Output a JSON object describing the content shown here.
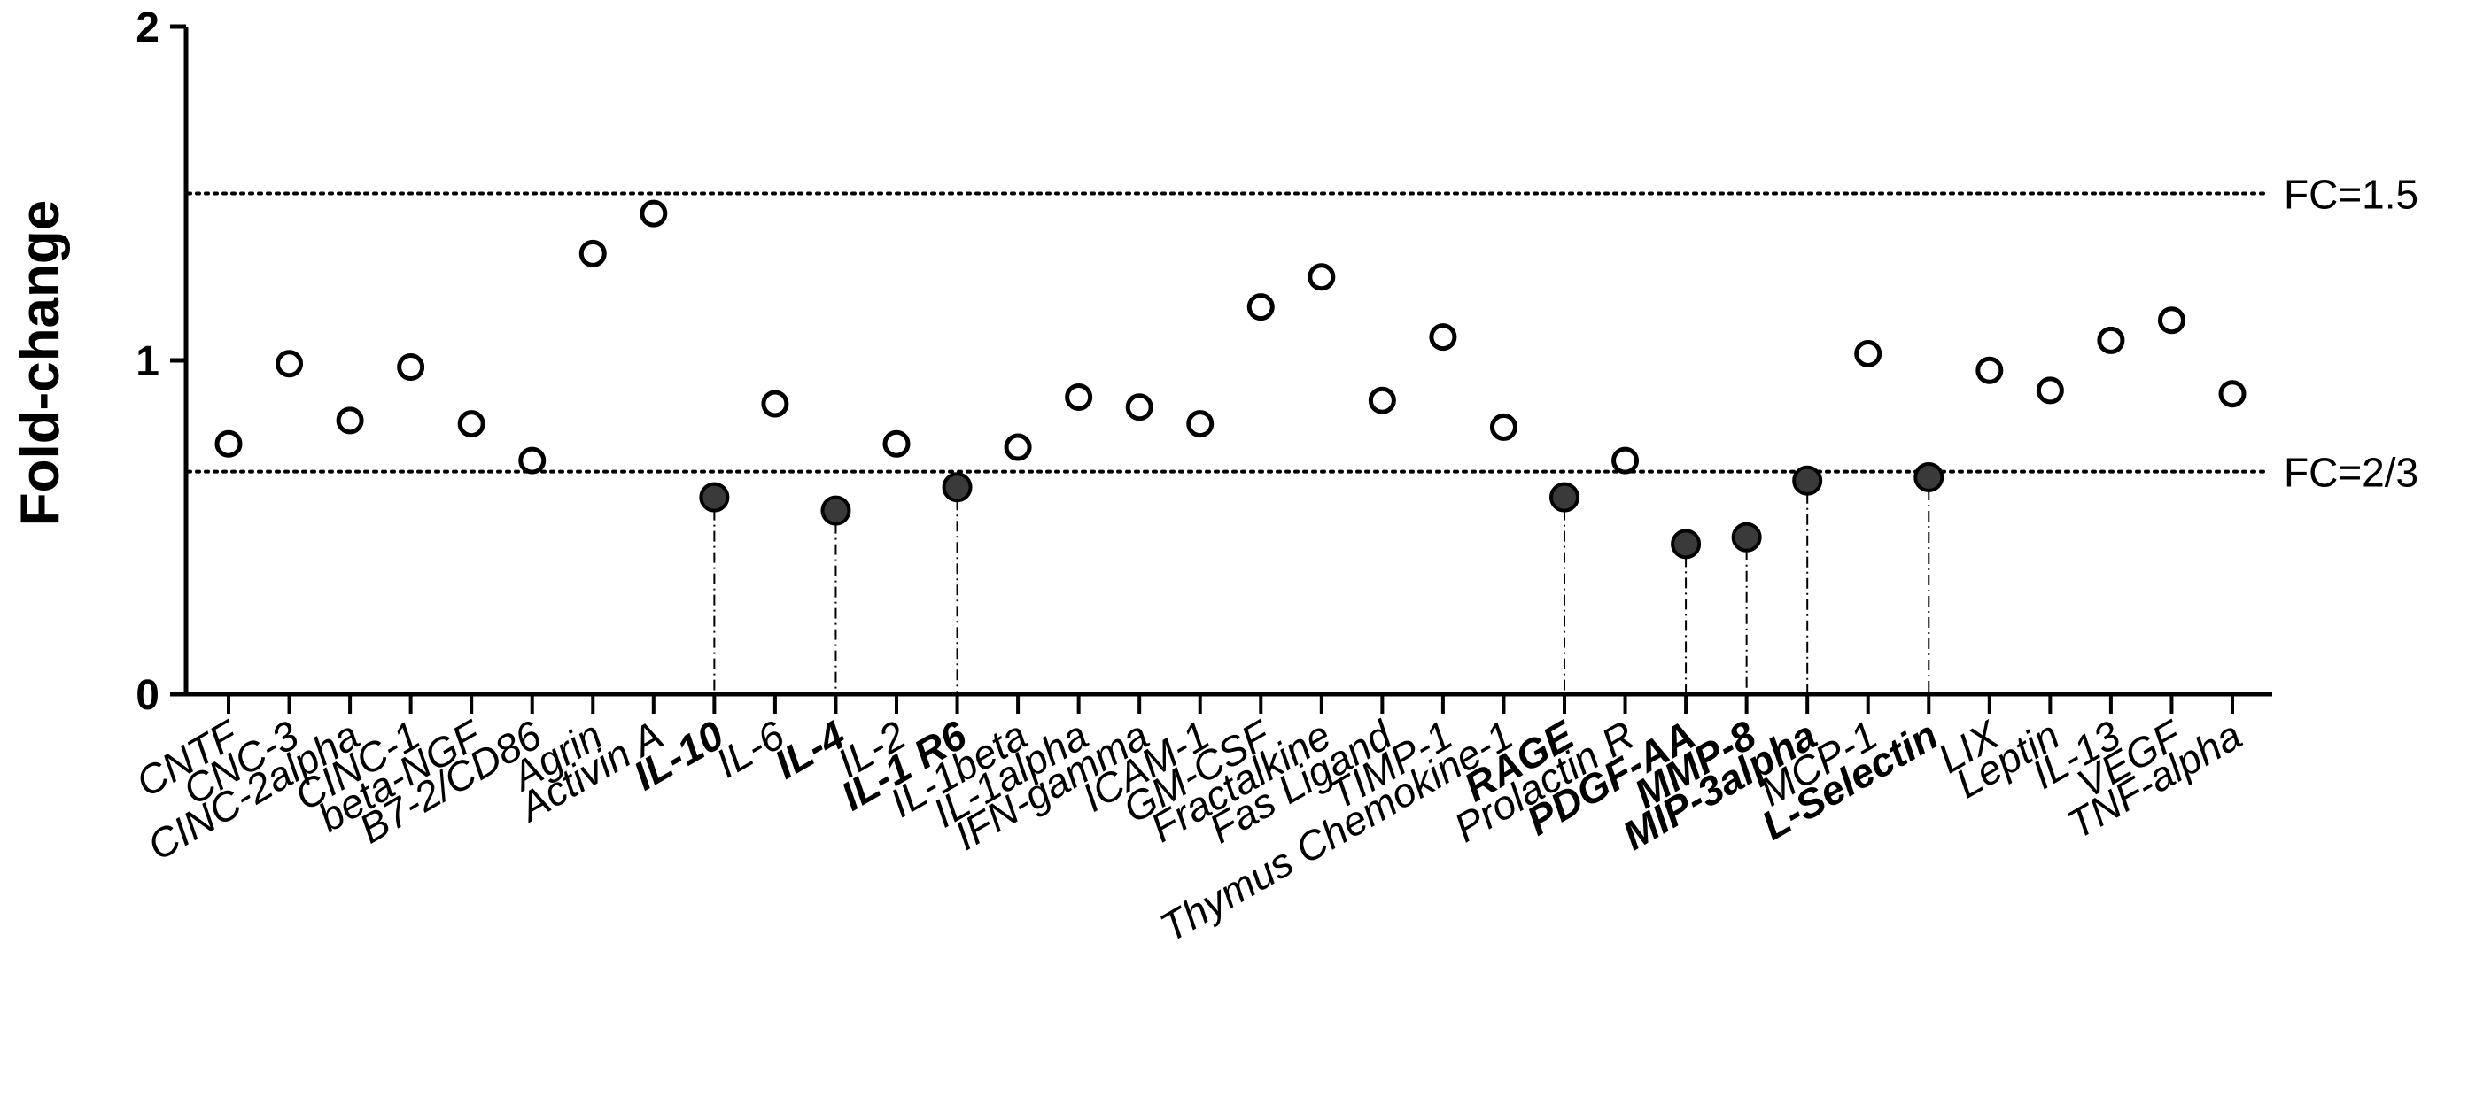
{
  "chart_data": {
    "type": "scatter",
    "title": "",
    "xlabel": "",
    "ylabel": "Fold-change",
    "ylim": [
      0,
      2
    ],
    "yticks": [
      "0",
      "1",
      "2"
    ],
    "grid": false,
    "legend": "none",
    "categories": [
      "CNTF",
      "CNC-3",
      "CINC-2alpha",
      "CINC-1",
      "beta-NGF",
      "B7-2/CD86",
      "Agrin",
      "Activin A",
      "IL-10",
      "IL-6",
      "IL-4",
      "IL-2",
      "IL-1 R6",
      "IL-1beta",
      "IL-1alpha",
      "IFN-gamma",
      "ICAM-1",
      "GM-CSF",
      "Fractalkine",
      "Fas Ligand",
      "TIMP-1",
      "Thymus Chemokine-1",
      "RAGE",
      "Prolactin R",
      "PDGF-AA",
      "MMP-8",
      "MIP-3alpha",
      "MCP-1",
      "L-Selectin",
      "LIX",
      "Leptin",
      "IL-13",
      "VEGF",
      "TNF-alpha"
    ],
    "values": [
      0.75,
      0.99,
      0.82,
      0.98,
      0.81,
      0.7,
      1.32,
      1.44,
      0.59,
      0.87,
      0.55,
      0.75,
      0.62,
      0.74,
      0.89,
      0.86,
      0.81,
      1.16,
      1.25,
      0.88,
      1.07,
      0.8,
      0.59,
      0.7,
      0.45,
      0.47,
      0.64,
      1.02,
      0.65,
      0.97,
      0.91,
      1.06,
      1.12,
      0.9
    ],
    "significant": [
      false,
      false,
      false,
      false,
      false,
      false,
      false,
      false,
      true,
      false,
      true,
      false,
      true,
      false,
      false,
      false,
      false,
      false,
      false,
      false,
      false,
      false,
      true,
      false,
      true,
      true,
      true,
      false,
      true,
      false,
      false,
      false,
      false,
      false
    ],
    "reference_lines": [
      {
        "value": 1.5,
        "label": "FC=1.5"
      },
      {
        "value": 0.6667,
        "label": "FC=2/3"
      }
    ],
    "colors": {
      "open_marker": "#000000",
      "filled_marker": "#3a3a3a",
      "axis": "#000000"
    }
  }
}
